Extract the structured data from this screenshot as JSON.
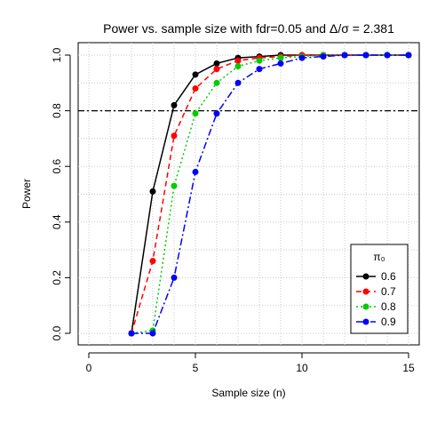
{
  "chart_data": {
    "type": "line",
    "title": "Power vs. sample size with fdr=0.05 and Δ/σ = 2.381",
    "xlabel": "Sample size (n)",
    "ylabel": "Power",
    "xlim": [
      0,
      15
    ],
    "ylim": [
      0,
      1.0
    ],
    "x_ticks": [
      "0",
      "5",
      "10",
      "15"
    ],
    "y_ticks": [
      "0.0",
      "0.2",
      "0.4",
      "0.6",
      "0.8",
      "1.0"
    ],
    "grid": true,
    "reference_line": {
      "y": 0.8,
      "style": "dash-dot",
      "color": "#000000"
    },
    "x": [
      2,
      3,
      4,
      5,
      6,
      7,
      8,
      9,
      10,
      11,
      12,
      13,
      14,
      15
    ],
    "legend": {
      "title": "π₀",
      "placement": "bottom-right"
    },
    "series": [
      {
        "name": "0.6",
        "color": "#000000",
        "dash": "none",
        "values": [
          0.0,
          0.51,
          0.82,
          0.93,
          0.97,
          0.99,
          0.995,
          1.0,
          1.0,
          1.0,
          1.0,
          1.0,
          1.0,
          1.0
        ]
      },
      {
        "name": "0.7",
        "color": "#ff0000",
        "dash": "6,4",
        "values": [
          0.0,
          0.26,
          0.71,
          0.88,
          0.95,
          0.98,
          0.99,
          0.995,
          1.0,
          1.0,
          1.0,
          1.0,
          1.0,
          1.0
        ]
      },
      {
        "name": "0.8",
        "color": "#00cc00",
        "dash": "2,3",
        "values": [
          0.0,
          0.01,
          0.53,
          0.79,
          0.9,
          0.96,
          0.98,
          0.99,
          0.995,
          1.0,
          1.0,
          1.0,
          1.0,
          1.0
        ]
      },
      {
        "name": "0.9",
        "color": "#0000ff",
        "dash": "8,3,2,3",
        "values": [
          0.0,
          0.0,
          0.2,
          0.58,
          0.79,
          0.9,
          0.95,
          0.97,
          0.99,
          0.995,
          1.0,
          1.0,
          1.0,
          1.0
        ]
      }
    ]
  }
}
